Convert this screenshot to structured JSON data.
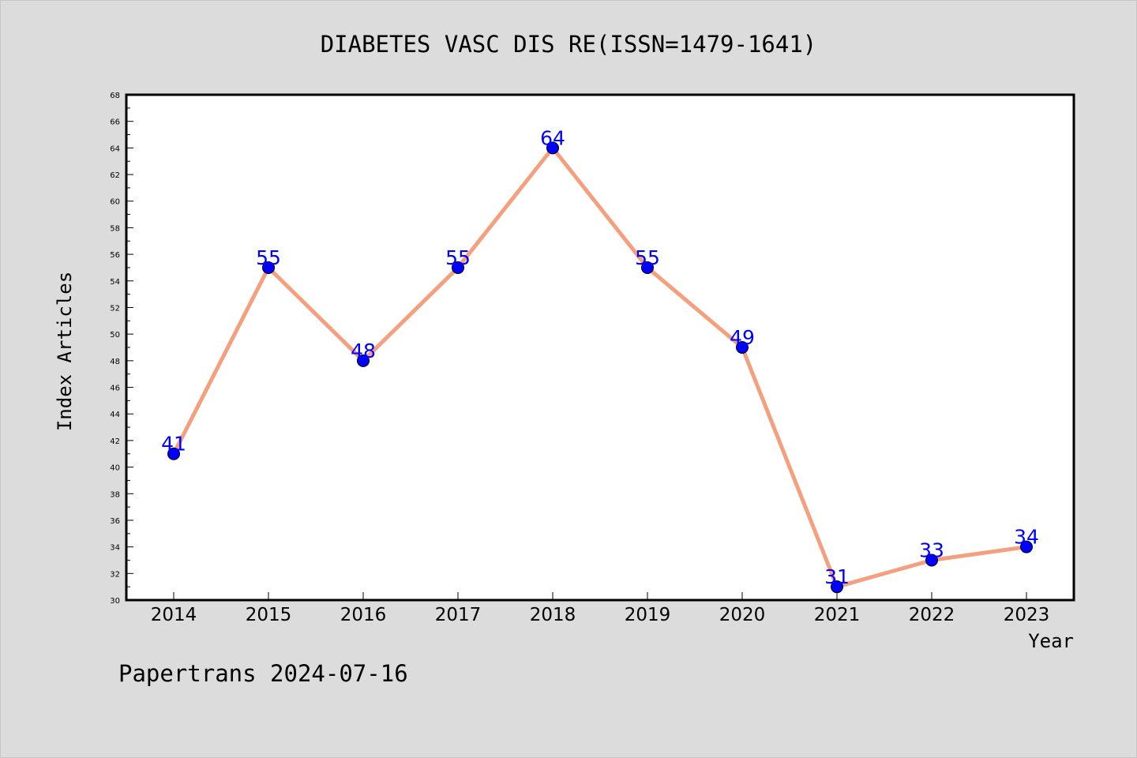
{
  "chart_data": {
    "type": "line",
    "title": "DIABETES VASC DIS RE(ISSN=1479-1641)",
    "xlabel": "Year",
    "ylabel": "Index Articles",
    "categories": [
      "2014",
      "2015",
      "2016",
      "2017",
      "2018",
      "2019",
      "2020",
      "2021",
      "2022",
      "2023"
    ],
    "series": [
      {
        "values": [
          41,
          55,
          48,
          55,
          64,
          55,
          49,
          31,
          33,
          34
        ]
      }
    ],
    "ylim": [
      30,
      68
    ],
    "yticks": [
      30,
      32,
      34,
      36,
      38,
      40,
      42,
      44,
      46,
      48,
      50,
      52,
      54,
      56,
      58,
      60,
      62,
      64,
      66,
      68
    ],
    "data_labels": [
      "41",
      "55",
      "48",
      "55",
      "64",
      "55",
      "49",
      "31",
      "33",
      "34"
    ],
    "grid": false,
    "colors": {
      "background": "#dcdcdc",
      "plot_background": "#ffffff",
      "line": "#f4a07f",
      "marker": "#0000ff",
      "data_label": "#0000ff"
    }
  },
  "footer": {
    "text": "Papertrans 2024-07-16"
  }
}
